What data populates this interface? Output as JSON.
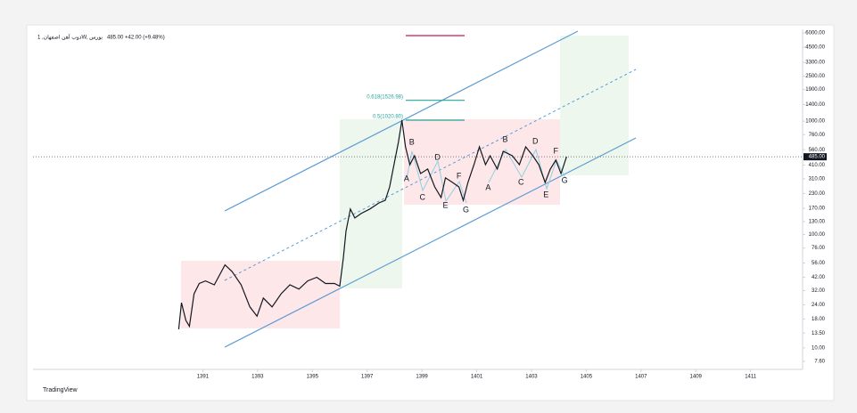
{
  "chart_data": {
    "type": "line",
    "title": "ذوب آهن اصفهان, 1W, بورس",
    "quote": "485.00  +42.00 (+9.48%)",
    "brand": "TradingView",
    "log_scale": true,
    "grid": false,
    "xlim": [
      1384.8,
      1412.9
    ],
    "xticks": [
      1391,
      1393,
      1395,
      1397,
      1399,
      1401,
      1403,
      1405,
      1407,
      1409,
      1411
    ],
    "ylim": [
      6.46,
      6450
    ],
    "yticks": [
      {
        "value": 6000,
        "label": "6000.00"
      },
      {
        "value": 4500,
        "label": "4500.00"
      },
      {
        "value": 3300,
        "label": "3300.00"
      },
      {
        "value": 2500,
        "label": "2500.00"
      },
      {
        "value": 1900,
        "label": "1900.00"
      },
      {
        "value": 1400,
        "label": "1400.00"
      },
      {
        "value": 1000,
        "label": "1000.00"
      },
      {
        "value": 760,
        "label": "760.00"
      },
      {
        "value": 560,
        "label": "560.00"
      },
      {
        "value": 410,
        "label": "410.00"
      },
      {
        "value": 310,
        "label": "310.00"
      },
      {
        "value": 230,
        "label": "230.00"
      },
      {
        "value": 170,
        "label": "170.00"
      },
      {
        "value": 130,
        "label": "130.00"
      },
      {
        "value": 100,
        "label": "100.00"
      },
      {
        "value": 76,
        "label": "76.00"
      },
      {
        "value": 56,
        "label": "56.00"
      },
      {
        "value": 42,
        "label": "42.00"
      },
      {
        "value": 32,
        "label": "32.00"
      },
      {
        "value": 24,
        "label": "24.00"
      },
      {
        "value": 18,
        "label": "18.00"
      },
      {
        "value": 13.5,
        "label": "13.50"
      },
      {
        "value": 10,
        "label": "10.00"
      },
      {
        "value": 7.6,
        "label": "7.60"
      }
    ],
    "x": [
      1390.12,
      1390.22,
      1390.38,
      1390.51,
      1390.68,
      1390.87,
      1391.1,
      1391.42,
      1391.81,
      1392.07,
      1392.4,
      1392.72,
      1392.98,
      1393.21,
      1393.53,
      1393.86,
      1394.18,
      1394.51,
      1394.83,
      1395.16,
      1395.48,
      1395.81,
      1396.0,
      1396.13,
      1396.23,
      1396.39,
      1396.55,
      1396.78,
      1397.1,
      1397.43,
      1397.66,
      1397.82,
      1397.98,
      1398.14,
      1398.27,
      1398.4,
      1398.56,
      1398.73,
      1398.95,
      1399.21,
      1399.47,
      1399.7,
      1399.86,
      1400.12,
      1400.35,
      1400.51,
      1400.68,
      1400.9,
      1401.1,
      1401.32,
      1401.49,
      1401.75,
      1401.97,
      1402.3,
      1402.56,
      1402.79,
      1403.05,
      1403.27,
      1403.5,
      1403.69,
      1403.89,
      1404.08,
      1404.28
    ],
    "series": [
      {
        "name": "ذوب آهن اصفهان",
        "color": "#131722",
        "values": [
          14.6,
          25,
          17.5,
          15.5,
          30,
          37,
          39,
          36,
          54,
          47,
          36,
          23,
          19,
          27.5,
          23,
          30,
          36,
          33,
          39,
          42,
          37,
          37,
          35,
          62,
          107,
          168,
          140,
          153,
          168,
          190,
          200,
          263,
          413,
          649,
          1020,
          593,
          413,
          495,
          345,
          378,
          263,
          212,
          316,
          288,
          263,
          200,
          288,
          413,
          593,
          413,
          495,
          378,
          542,
          495,
          413,
          593,
          495,
          413,
          288,
          378,
          453,
          345,
          485
        ]
      }
    ],
    "last_price": {
      "value": 485,
      "label": "485.00"
    },
    "fib_levels": [
      {
        "value": 1020.8,
        "label": "0.5(1020.80)"
      },
      {
        "value": 1526.98,
        "label": "0.618(1526.98)"
      }
    ],
    "annotations": [
      {
        "text": "A",
        "x": 1398.44,
        "y": 310
      },
      {
        "text": "B",
        "x": 1398.63,
        "y": 650
      },
      {
        "text": "C",
        "x": 1399.02,
        "y": 212
      },
      {
        "text": "D",
        "x": 1399.57,
        "y": 478
      },
      {
        "text": "E",
        "x": 1399.86,
        "y": 180
      },
      {
        "text": "F",
        "x": 1400.35,
        "y": 327
      },
      {
        "text": "G",
        "x": 1400.61,
        "y": 164
      },
      {
        "text": "A",
        "x": 1401.42,
        "y": 258
      },
      {
        "text": "B",
        "x": 1402.04,
        "y": 686
      },
      {
        "text": "C",
        "x": 1402.62,
        "y": 288
      },
      {
        "text": "D",
        "x": 1403.14,
        "y": 661
      },
      {
        "text": "E",
        "x": 1403.53,
        "y": 223
      },
      {
        "text": "F",
        "x": 1403.89,
        "y": 542
      },
      {
        "text": "G",
        "x": 1404.21,
        "y": 299
      }
    ]
  }
}
